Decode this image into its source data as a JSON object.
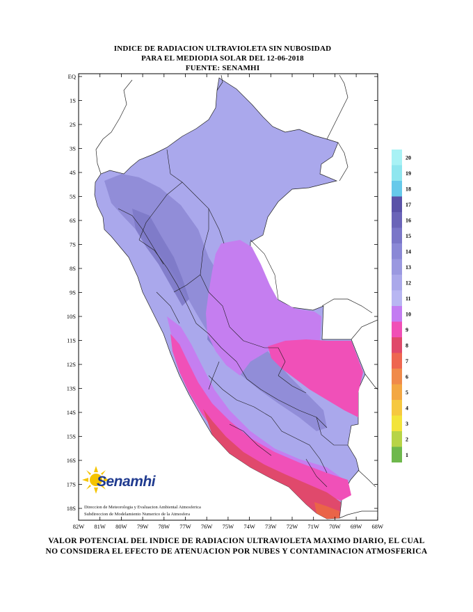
{
  "title": {
    "line1": "INDICE DE RADIACION ULTRAVIOLETA SIN NUBOSIDAD",
    "line2": "PARA EL MEDIODIA SOLAR DEL 12-06-2018",
    "line3": "FUENTE: SENAMHI"
  },
  "latitude_labels": [
    "EQ",
    "1S",
    "2S",
    "3S",
    "4S",
    "5S",
    "6S",
    "7S",
    "8S",
    "9S",
    "10S",
    "11S",
    "12S",
    "13S",
    "14S",
    "15S",
    "16S",
    "17S",
    "18S"
  ],
  "longitude_labels": [
    "82W",
    "81W",
    "80W",
    "79W",
    "78W",
    "77W",
    "76W",
    "75W",
    "74W",
    "73W",
    "72W",
    "71W",
    "70W",
    "69W",
    "68W"
  ],
  "legend": {
    "values": [
      "20",
      "19",
      "18",
      "17",
      "16",
      "15",
      "14",
      "13",
      "12",
      "11",
      "10",
      "9",
      "8",
      "7",
      "6",
      "5",
      "4",
      "3",
      "2",
      "1"
    ],
    "colors": [
      "#a8f2f5",
      "#8fe6ef",
      "#66c9ea",
      "#5a52a8",
      "#6a64b8",
      "#7a76c8",
      "#8a88d6",
      "#9a98e0",
      "#aaa8ea",
      "#b8b6f2",
      "#c37cf2",
      "#f04fb6",
      "#e0496a",
      "#ee6650",
      "#f08a4a",
      "#f3a742",
      "#f6c840",
      "#f3e43a",
      "#b7d447",
      "#6eb84c"
    ]
  },
  "regions": {
    "uv_low_color": "#a9a7ec",
    "uv_mid_color": "#8c88d4",
    "uv_10_color": "#c47df0",
    "uv_9_color": "#f04fb6",
    "uv_8_color": "#e0496a",
    "uv_7_color": "#ea6448"
  },
  "logo": {
    "name": "Senamhi",
    "credit_line1": "Direccion de Meteorologia y Evaluacion Ambiental Atmosferica",
    "credit_line2": "Subdireccion de Modelamiento Numerico de la Atmosfera"
  },
  "footer": {
    "line1": "VALOR POTENCIAL DEL INDICE DE RADIACION ULTRAVIOLETA MAXIMO DIARIO, EL CUAL",
    "line2": "NO CONSIDERA EL EFECTO DE ATENUACION POR NUBES Y CONTAMINACION ATMOSFERICA"
  }
}
